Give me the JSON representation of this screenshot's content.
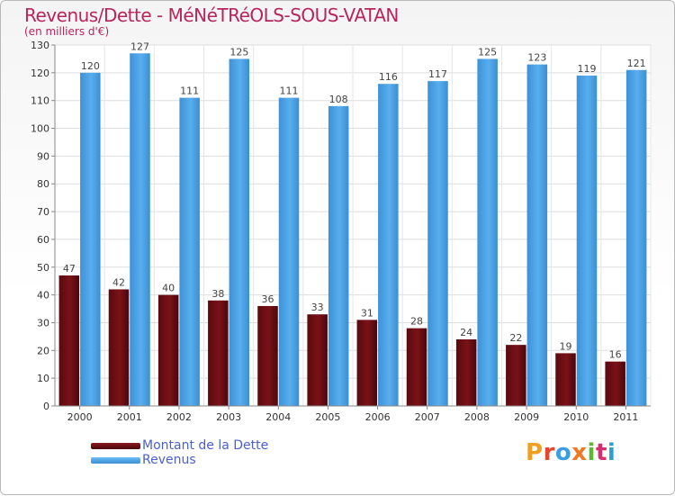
{
  "title": "Revenus/Dette - MéNéTRéOLS-SOUS-VATAN",
  "subtitle": "(en milliers d'€)",
  "legend": {
    "debt_label": "Montant de la Dette",
    "revenue_label": "Revenus"
  },
  "logo": {
    "text": "Proxiti"
  },
  "colors": {
    "debt": "#6b0d12",
    "revenue": "#4ba3e8",
    "title": "#b8255a",
    "legend_text": "#4a5fd0"
  },
  "chart_data": {
    "type": "bar",
    "title": "Revenus/Dette - MéNéTRéOLS-SOUS-VATAN",
    "ylabel": "(en milliers d'€)",
    "categories": [
      "2000",
      "2001",
      "2002",
      "2003",
      "2004",
      "2005",
      "2006",
      "2007",
      "2008",
      "2009",
      "2010",
      "2011"
    ],
    "series": [
      {
        "name": "Montant de la Dette",
        "values": [
          47,
          42,
          40,
          38,
          36,
          33,
          31,
          28,
          24,
          22,
          19,
          16
        ]
      },
      {
        "name": "Revenus",
        "values": [
          120,
          127,
          111,
          125,
          111,
          108,
          116,
          117,
          125,
          123,
          119,
          121
        ]
      }
    ],
    "ylim": [
      0,
      130
    ],
    "yticks": [
      0,
      10,
      20,
      30,
      40,
      50,
      60,
      70,
      80,
      90,
      100,
      110,
      120,
      130
    ],
    "grid": true,
    "legend_position": "bottom-left"
  }
}
